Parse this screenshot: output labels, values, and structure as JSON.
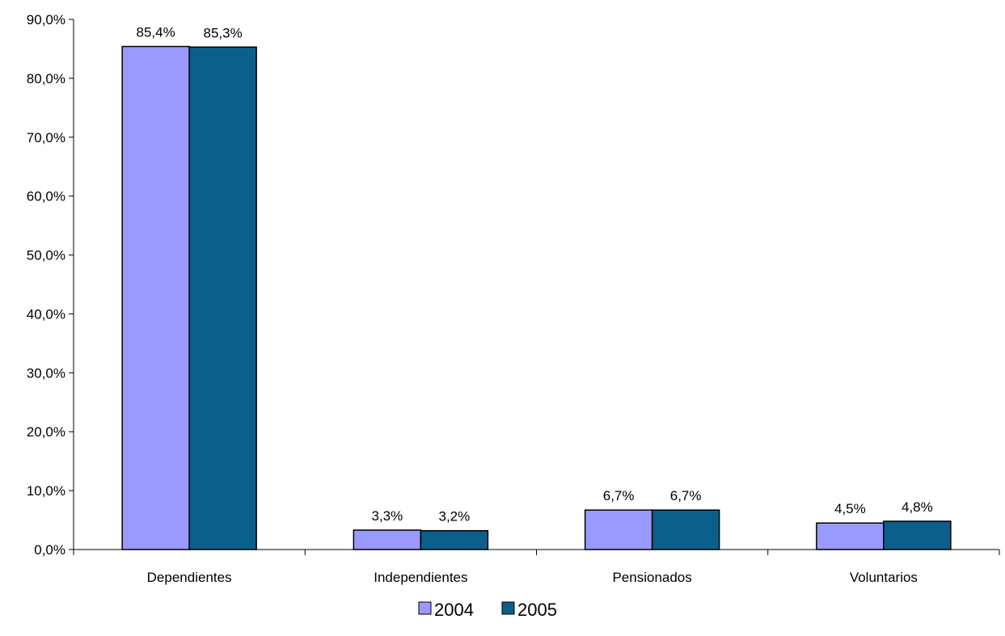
{
  "chart_data": {
    "type": "bar",
    "title": "",
    "xlabel": "",
    "ylabel": "",
    "categories": [
      "Dependientes",
      "Independientes",
      "Pensionados",
      "Voluntarios"
    ],
    "series": [
      {
        "name": "2004",
        "color": "#9999ff",
        "values": [
          85.4,
          3.3,
          6.7,
          4.5
        ],
        "labels": [
          "85,4%",
          "3,3%",
          "6,7%",
          "4,5%"
        ]
      },
      {
        "name": "2005",
        "color": "#0b5f8a",
        "values": [
          85.3,
          3.2,
          6.7,
          4.8
        ],
        "labels": [
          "85,3%",
          "3,2%",
          "6,7%",
          "4,8%"
        ]
      }
    ],
    "ylim": [
      0,
      90
    ],
    "yticks": [
      0,
      10,
      20,
      30,
      40,
      50,
      60,
      70,
      80,
      90
    ],
    "ytick_labels": [
      "0,0%",
      "10,0%",
      "20,0%",
      "30,0%",
      "40,0%",
      "50,0%",
      "60,0%",
      "70,0%",
      "80,0%",
      "90,0%"
    ],
    "grid": false,
    "legend_position": "bottom-center"
  }
}
